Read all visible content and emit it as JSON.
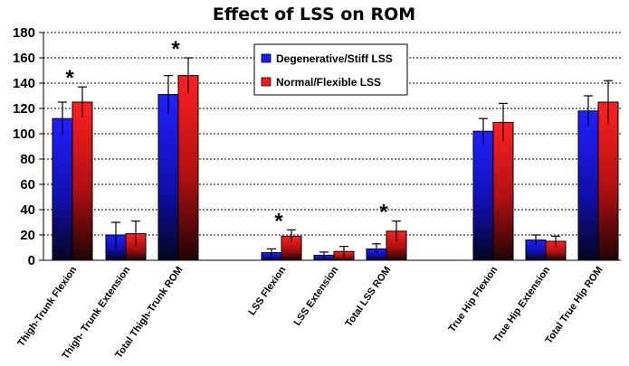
{
  "chart_data": {
    "type": "bar",
    "title": "Effect of LSS on ROM",
    "xlabel": "",
    "ylabel": "",
    "ylim": [
      0,
      180
    ],
    "yticks": [
      0,
      20,
      40,
      60,
      80,
      100,
      120,
      140,
      160,
      180
    ],
    "grid": true,
    "legend_position": "top-center",
    "categories": [
      "Thigh-Trunk Flexion",
      "Thigh- Trunk Extension",
      "Total Thigh-Trunk ROM",
      "LSS Flexion",
      "LSS Extension",
      "Total LSS ROM",
      "True Hip Flexion",
      "True Hip Extension",
      "Total True Hip ROM"
    ],
    "series": [
      {
        "name": "Degenerative/Stiff LSS",
        "color": "#1a1aff",
        "values": [
          112,
          20,
          131,
          6,
          4,
          9,
          102,
          16,
          118
        ],
        "errors": [
          13,
          10,
          15,
          3,
          2.5,
          4,
          10,
          4,
          12
        ]
      },
      {
        "name": "Normal/Flexible LSS",
        "color": "#ff1a1a",
        "values": [
          125,
          21,
          146,
          19,
          7,
          23,
          109,
          15,
          125
        ],
        "errors": [
          12,
          10,
          14,
          5,
          4,
          8,
          15,
          4,
          17
        ]
      }
    ],
    "annotations": [
      {
        "text": "*",
        "category": "Thigh-Trunk Flexion"
      },
      {
        "text": "*",
        "category": "Total Thigh-Trunk ROM"
      },
      {
        "text": "*",
        "category": "LSS Flexion"
      },
      {
        "text": "*",
        "category": "Total LSS ROM"
      }
    ]
  }
}
